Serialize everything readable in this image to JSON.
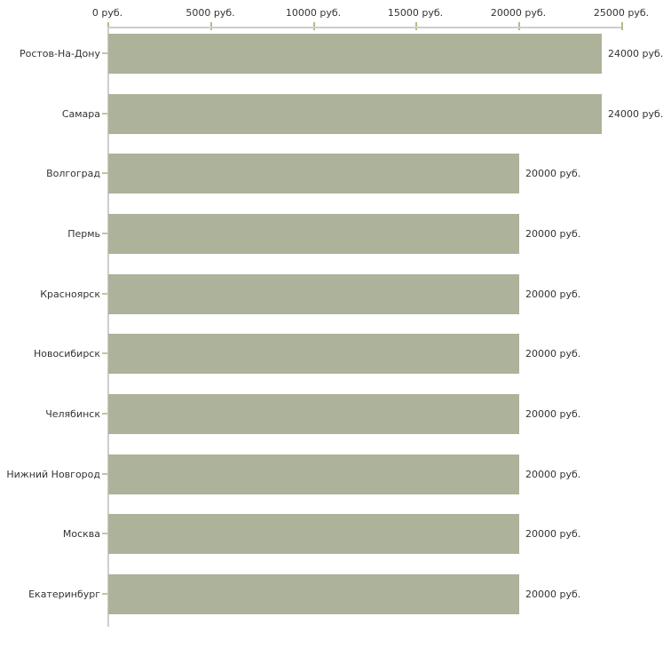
{
  "chart_data": {
    "type": "bar",
    "orientation": "horizontal",
    "title": "",
    "categories": [
      "Ростов-На-Дону",
      "Самара",
      "Волгоград",
      "Пермь",
      "Красноярск",
      "Новосибирск",
      "Челябинск",
      "Нижний Новгород",
      "Москва",
      "Екатеринбург"
    ],
    "values": [
      24000,
      24000,
      20000,
      20000,
      20000,
      20000,
      20000,
      20000,
      20000,
      20000
    ],
    "value_labels": [
      "24000 руб.",
      "24000 руб.",
      "20000 руб.",
      "20000 руб.",
      "20000 руб.",
      "20000 руб.",
      "20000 руб.",
      "20000 руб.",
      "20000 руб.",
      "20000 руб."
    ],
    "x_ticks": [
      0,
      5000,
      10000,
      15000,
      20000,
      25000
    ],
    "x_tick_labels": [
      "0 руб.",
      "5000 руб.",
      "10000 руб.",
      "15000 руб.",
      "20000 руб.",
      "25000 руб."
    ],
    "xlim": [
      0,
      25000
    ],
    "ylabel": "",
    "xlabel": "",
    "grid": false,
    "legend": false,
    "bar_color": "#adb39a",
    "axis_line_color": "#cdcdcd",
    "x_tick_color": "#b9b989",
    "category_tick_color": "#c3c3a3",
    "text_color": "#333333"
  }
}
